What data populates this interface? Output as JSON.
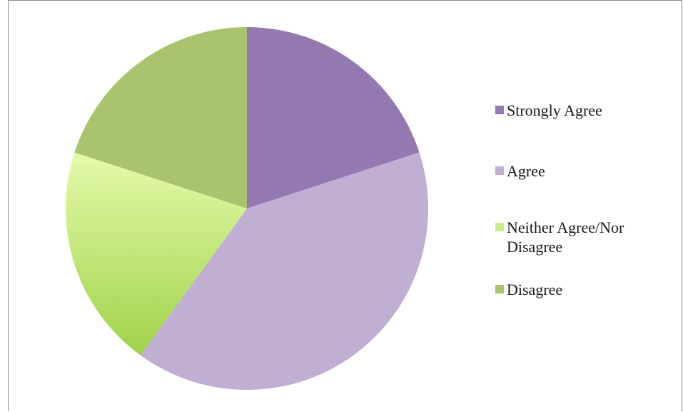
{
  "chart_data": {
    "type": "pie",
    "slices": [
      {
        "label": "Strongly Agree",
        "value": 20,
        "color": "#9379b0"
      },
      {
        "label": "Agree",
        "value": 40,
        "color": "#c0afd2"
      },
      {
        "label": "Neither Agree/Nor Disagree",
        "value": 20,
        "color": "#c6ed8a"
      },
      {
        "label": "Disagree",
        "value": 20,
        "color": "#a9c46c"
      }
    ],
    "start_angle_deg": 0,
    "direction": "clockwise",
    "legend_position": "right"
  },
  "legend": {
    "items": [
      {
        "label": "Strongly Agree",
        "color": "#9379b0"
      },
      {
        "label": "Agree",
        "color": "#c0afd2"
      },
      {
        "label": "Neither Agree/Nor Disagree",
        "color": "#c6ed8a"
      },
      {
        "label": "Disagree",
        "color": "#a9c46c"
      }
    ]
  }
}
